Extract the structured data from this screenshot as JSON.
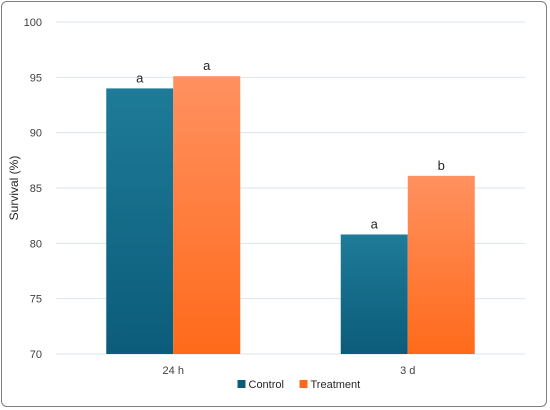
{
  "chart_data": {
    "type": "bar",
    "title": "",
    "xlabel": "",
    "ylabel": "Survival (%)",
    "ylim": [
      70,
      100
    ],
    "yticks": [
      70,
      75,
      80,
      85,
      90,
      95,
      100
    ],
    "grid": true,
    "legend_position": "bottom",
    "categories": [
      "24 h",
      "3 d"
    ],
    "series": [
      {
        "name": "Control",
        "values": [
          94,
          80.8
        ],
        "labels": [
          "a",
          "a"
        ],
        "color": "#0b5c7a",
        "color_top": "#1e7b98"
      },
      {
        "name": "Treatment",
        "values": [
          95.1,
          86.1
        ],
        "labels": [
          "a",
          "b"
        ],
        "color": "#ff6a1a",
        "color_top": "#ff9160"
      }
    ]
  }
}
